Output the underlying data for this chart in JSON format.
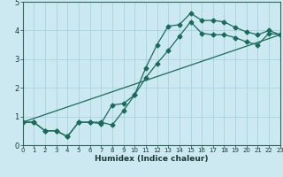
{
  "xlabel": "Humidex (Indice chaleur)",
  "ylabel": "",
  "bg_color": "#cce8f0",
  "grid_color": "#9ecfdc",
  "line_color": "#1a6b5a",
  "line1_x": [
    0,
    1,
    2,
    3,
    4,
    5,
    6,
    7,
    8,
    9,
    10,
    11,
    12,
    13,
    14,
    15,
    16,
    17,
    18,
    19,
    20,
    21,
    22,
    23
  ],
  "line1_y": [
    0.8,
    0.8,
    0.5,
    0.5,
    0.3,
    0.8,
    0.8,
    0.8,
    0.7,
    1.2,
    1.75,
    2.7,
    3.5,
    4.15,
    4.2,
    4.6,
    4.35,
    4.35,
    4.3,
    4.1,
    3.95,
    3.85,
    4.0,
    3.85
  ],
  "line2_x": [
    0,
    1,
    2,
    3,
    4,
    5,
    6,
    7,
    8,
    9,
    10,
    11,
    12,
    13,
    14,
    15,
    16,
    17,
    18,
    19,
    20,
    21,
    22,
    23
  ],
  "line2_y": [
    0.8,
    0.8,
    0.5,
    0.5,
    0.3,
    0.8,
    0.8,
    0.75,
    1.4,
    1.45,
    1.75,
    2.35,
    2.85,
    3.3,
    3.8,
    4.3,
    3.9,
    3.85,
    3.85,
    3.75,
    3.6,
    3.5,
    3.9,
    3.85
  ],
  "line3_x": [
    0,
    23
  ],
  "line3_y": [
    0.8,
    3.85
  ],
  "xlim": [
    0,
    23
  ],
  "ylim": [
    0,
    5
  ],
  "xticks": [
    0,
    1,
    2,
    3,
    4,
    5,
    6,
    7,
    8,
    9,
    10,
    11,
    12,
    13,
    14,
    15,
    16,
    17,
    18,
    19,
    20,
    21,
    22,
    23
  ],
  "yticks": [
    0,
    1,
    2,
    3,
    4,
    5
  ],
  "marker_size": 2.5,
  "line_width": 0.9
}
